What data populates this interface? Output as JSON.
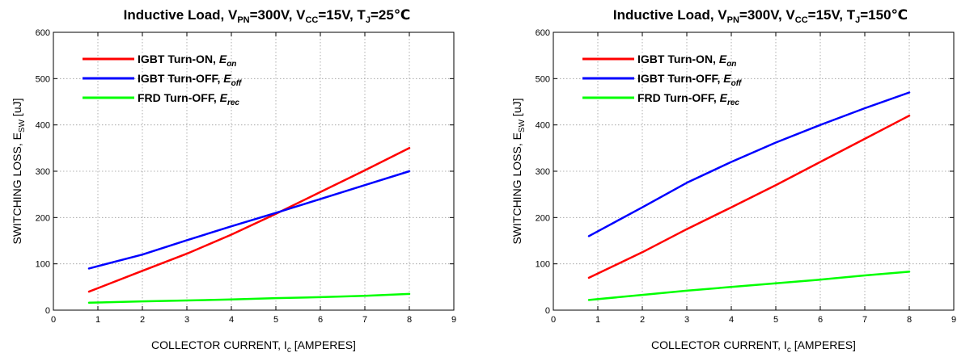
{
  "chart_data": [
    {
      "type": "line",
      "title": {
        "prefix": "Inductive Load, V",
        "pn_sub": "PN",
        "mid1": "=300V, V",
        "cc_sub": "CC",
        "mid2": "=15V, T",
        "j_sub": "J",
        "suffix": "=25℃"
      },
      "xlabel": {
        "main": "COLLECTOR CURRENT, I",
        "sub": "c",
        "rest": " [AMPERES]"
      },
      "ylabel": {
        "main": "SWITCHING LOSS, E",
        "sub": "SW",
        "rest": " [uJ]"
      },
      "xlim": [
        0,
        9
      ],
      "ylim": [
        0,
        600
      ],
      "x_ticks": [
        0,
        1,
        2,
        3,
        4,
        5,
        6,
        7,
        8,
        9
      ],
      "y_ticks": [
        0,
        100,
        200,
        300,
        400,
        500,
        600
      ],
      "grid": true,
      "legend_position": "top-left",
      "series": [
        {
          "label": "IGBT Turn-ON, ",
          "sym": "E",
          "sub": "on",
          "color": "#ff0000",
          "x": [
            0.8,
            2,
            3,
            4,
            5,
            6,
            7,
            8
          ],
          "y": [
            40,
            85,
            122,
            163,
            208,
            255,
            302,
            350
          ]
        },
        {
          "label": "IGBT Turn-OFF, ",
          "sym": "E",
          "sub": "off",
          "color": "#0000ff",
          "x": [
            0.8,
            2,
            3,
            4,
            5,
            6,
            7,
            8
          ],
          "y": [
            90,
            120,
            151,
            181,
            210,
            240,
            270,
            300
          ]
        },
        {
          "label": "FRD Turn-OFF, ",
          "sym": "E",
          "sub": "rec",
          "color": "#00ff00",
          "x": [
            0.8,
            2,
            3,
            4,
            5,
            6,
            7,
            8
          ],
          "y": [
            16,
            19,
            21,
            23,
            26,
            28,
            31,
            35
          ]
        }
      ]
    },
    {
      "type": "line",
      "title": {
        "prefix": "Inductive Load, V",
        "pn_sub": "PN",
        "mid1": "=300V, V",
        "cc_sub": "CC",
        "mid2": "=15V, T",
        "j_sub": "J",
        "suffix": "=150℃"
      },
      "xlabel": {
        "main": "COLLECTOR CURRENT, I",
        "sub": "c",
        "rest": " [AMPERES]"
      },
      "ylabel": {
        "main": "SWITCHING LOSS, E",
        "sub": "SW",
        "rest": " [uJ]"
      },
      "xlim": [
        0,
        9
      ],
      "ylim": [
        0,
        600
      ],
      "x_ticks": [
        0,
        1,
        2,
        3,
        4,
        5,
        6,
        7,
        8,
        9
      ],
      "y_ticks": [
        0,
        100,
        200,
        300,
        400,
        500,
        600
      ],
      "grid": true,
      "legend_position": "top-left",
      "series": [
        {
          "label": "IGBT Turn-ON, ",
          "sym": "E",
          "sub": "on",
          "color": "#ff0000",
          "x": [
            0.8,
            2,
            3,
            4,
            5,
            6,
            7,
            8
          ],
          "y": [
            70,
            125,
            175,
            222,
            270,
            320,
            370,
            420
          ]
        },
        {
          "label": "IGBT Turn-OFF, ",
          "sym": "E",
          "sub": "off",
          "color": "#0000ff",
          "x": [
            0.8,
            2,
            3,
            4,
            5,
            6,
            7,
            8
          ],
          "y": [
            160,
            222,
            275,
            320,
            362,
            400,
            436,
            470
          ]
        },
        {
          "label": "FRD Turn-OFF, ",
          "sym": "E",
          "sub": "rec",
          "color": "#00ff00",
          "x": [
            0.8,
            2,
            3,
            4,
            5,
            6,
            7,
            8
          ],
          "y": [
            22,
            33,
            42,
            50,
            58,
            66,
            75,
            83
          ]
        }
      ]
    }
  ]
}
